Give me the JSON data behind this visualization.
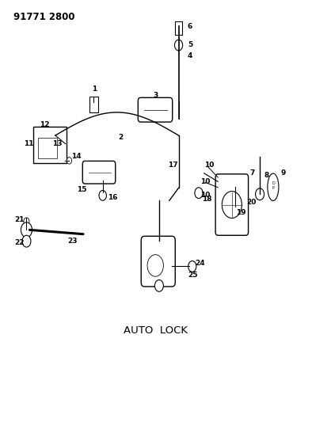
{
  "title": "91771 2800",
  "background_color": "#ffffff",
  "text_color": "#000000",
  "line_color": "#000000",
  "bottom_label": "AUTO  LOCK"
}
